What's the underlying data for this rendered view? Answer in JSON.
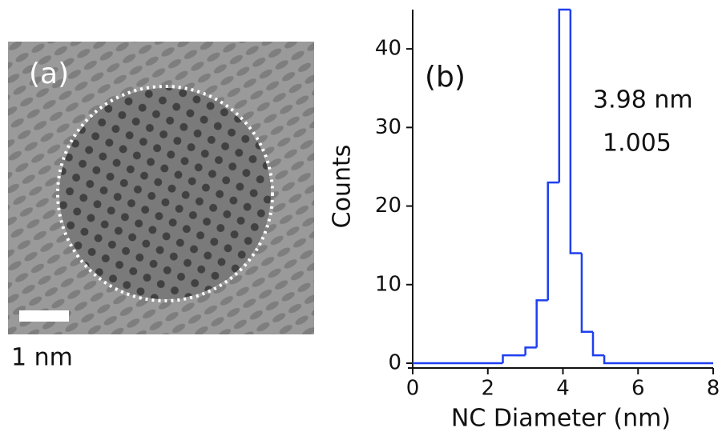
{
  "panel_a": {
    "label": "(a)",
    "scale_bar": "1 nm"
  },
  "chart_data": {
    "type": "histogram",
    "panel_label": "(b)",
    "annotations": [
      "3.98 nm",
      "1.005"
    ],
    "xlabel": "NC Diameter (nm)",
    "ylabel": "Counts",
    "bins": [
      0,
      2.4,
      2.7,
      3.0,
      3.3,
      3.6,
      3.9,
      4.2,
      4.5,
      4.8,
      5.1,
      8
    ],
    "counts": [
      0,
      1,
      1,
      2,
      8,
      23,
      45,
      14,
      4,
      1,
      0
    ],
    "color": "#1f3ff0",
    "xlim": [
      0,
      8
    ],
    "xticks": [
      0,
      2,
      4,
      6,
      8
    ],
    "ylim": [
      0,
      45
    ],
    "yticks": [
      0,
      10,
      20,
      30,
      40
    ]
  }
}
